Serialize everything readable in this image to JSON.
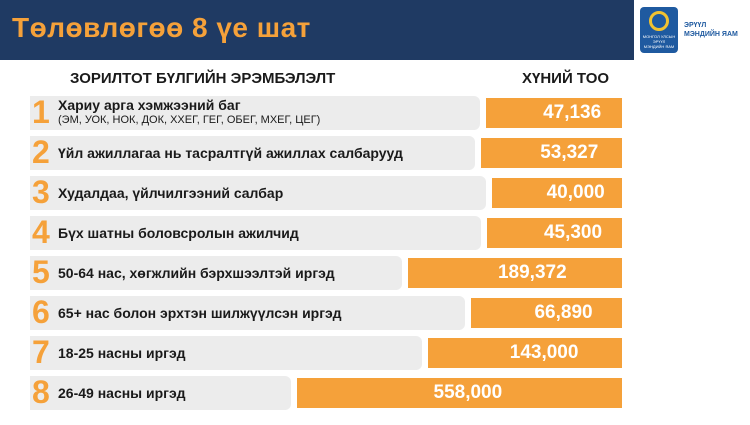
{
  "header": {
    "title": "Төлөвлөгөө 8 үе шат"
  },
  "logo": {
    "emblem_text": "МОНГОЛ УЛСЫН ЭРҮҮЛ МЭНДИЙН ЯАМ",
    "ministry_line1": "ЭРҮҮЛ",
    "ministry_line2": "МЭНДИЙН ЯАМ"
  },
  "columns": {
    "left": "ЗОРИЛТОТ БҮЛГИЙН ЭРЭМБЭЛЭЛТ",
    "right": "ХҮНИЙ ТОО"
  },
  "chart_data": {
    "type": "bar",
    "categories": [
      "Хариу арга хэмжээний баг",
      "Үйл ажиллагаа нь тасралтгүй ажиллах салбарууд",
      "Худалдаа, үйлчилгээний салбар",
      "Бүх шатны боловсролын ажилчид",
      "50-64 нас, хөгжлийн бэрхшээлтэй иргэд",
      "65+ нас болон эрхтэн шилжүүлсэн иргэд",
      "18-25 насны иргэд",
      "26-49 насны иргэд"
    ],
    "ranks": [
      "1",
      "2",
      "3",
      "4",
      "5",
      "6",
      "7",
      "8"
    ],
    "subtitles": [
      "(ЭМ, УОК, НОК, ДОК, ХХЕГ, ГЕГ, ОБЕГ, МХЕГ, ЦЕГ)",
      "",
      "",
      "",
      "",
      "",
      "",
      ""
    ],
    "values": [
      47136,
      53327,
      40000,
      45300,
      189372,
      66890,
      143000,
      558000
    ],
    "value_labels": [
      "47,136",
      "53,327",
      "40,000",
      "45,300",
      "189,372",
      "66,890",
      "143,000",
      "558,000"
    ],
    "bar_color": "#f5a13a",
    "rank_color": "#f5a13a"
  }
}
